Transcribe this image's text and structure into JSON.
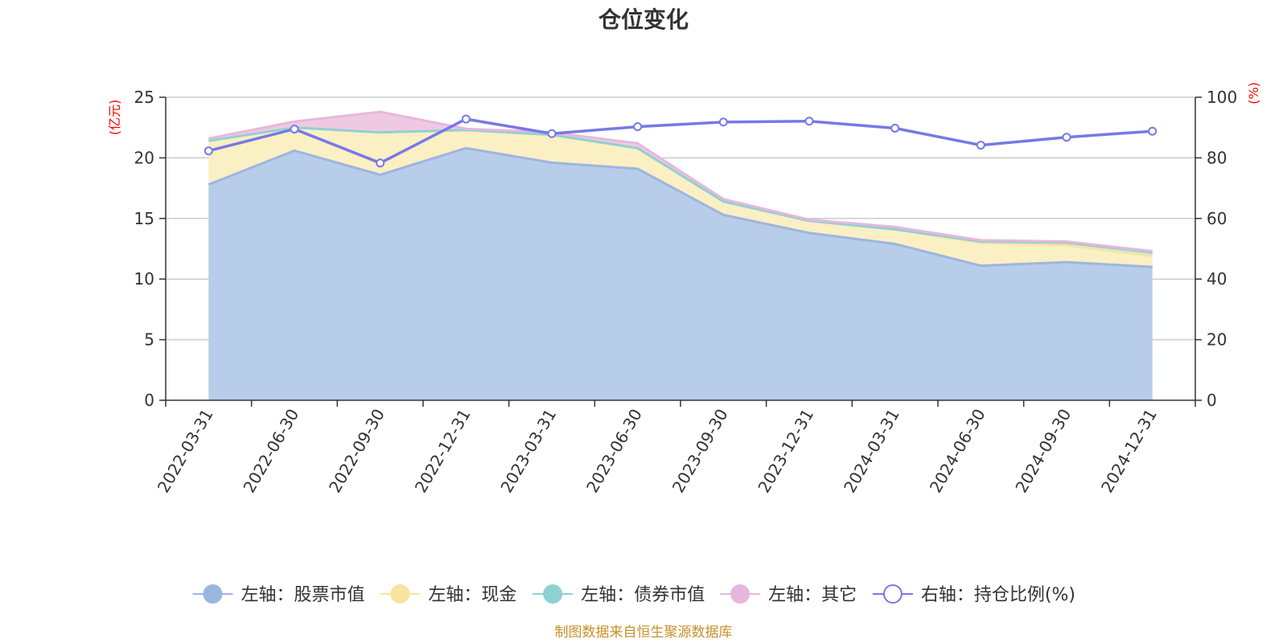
{
  "chart_data": {
    "type": "area",
    "title": "仓位变化",
    "source_note": "制图数据来自恒生聚源数据库",
    "left_axis": {
      "unit": "(亿元)",
      "range": [
        0,
        25
      ],
      "ticks": [
        "0",
        "5",
        "10",
        "15",
        "20",
        "25"
      ]
    },
    "right_axis": {
      "unit": "(%)",
      "range": [
        0,
        100
      ],
      "ticks": [
        "0",
        "20",
        "40",
        "60",
        "80",
        "100"
      ]
    },
    "categories": [
      "2022-03-31",
      "2022-06-30",
      "2022-09-30",
      "2022-12-31",
      "2023-03-31",
      "2023-06-30",
      "2023-09-30",
      "2023-12-31",
      "2024-03-31",
      "2024-06-30",
      "2024-09-30",
      "2024-12-31"
    ],
    "stacked_series": [
      {
        "name": "左轴：股票市值",
        "axis": "left",
        "color": "#9db6df",
        "fill": "#b8cdea",
        "values": [
          17.8,
          20.6,
          18.6,
          20.8,
          19.6,
          19.1,
          15.3,
          13.8,
          12.9,
          11.1,
          11.4,
          11.0
        ]
      },
      {
        "name": "左轴：现金",
        "axis": "left",
        "color": "#f7e4a0",
        "fill": "#fbefc4",
        "values": [
          3.6,
          1.9,
          3.5,
          1.5,
          2.3,
          1.7,
          1.1,
          1.0,
          1.2,
          1.9,
          1.4,
          0.9
        ]
      },
      {
        "name": "左轴：债券市值",
        "axis": "left",
        "color": "#8ed1d4",
        "fill": "#bfe6e7",
        "values": [
          0,
          0,
          0,
          0,
          0,
          0,
          0,
          0,
          0,
          0.1,
          0.2,
          0.3
        ]
      },
      {
        "name": "左轴：其它",
        "axis": "left",
        "color": "#e8b7dc",
        "fill": "#efc9e2",
        "values": [
          0.2,
          0.5,
          1.7,
          0.1,
          0.2,
          0.4,
          0.2,
          0.1,
          0.2,
          0.1,
          0.1,
          0.1
        ]
      }
    ],
    "line_series": {
      "name": "右轴：持仓比例(%)",
      "axis": "right",
      "color": "#7878e6",
      "values": [
        82.3,
        89.5,
        78.3,
        92.8,
        88.0,
        90.3,
        91.8,
        92.1,
        89.8,
        84.2,
        86.8,
        88.8
      ]
    },
    "grid": true,
    "legend_position": "bottom"
  }
}
